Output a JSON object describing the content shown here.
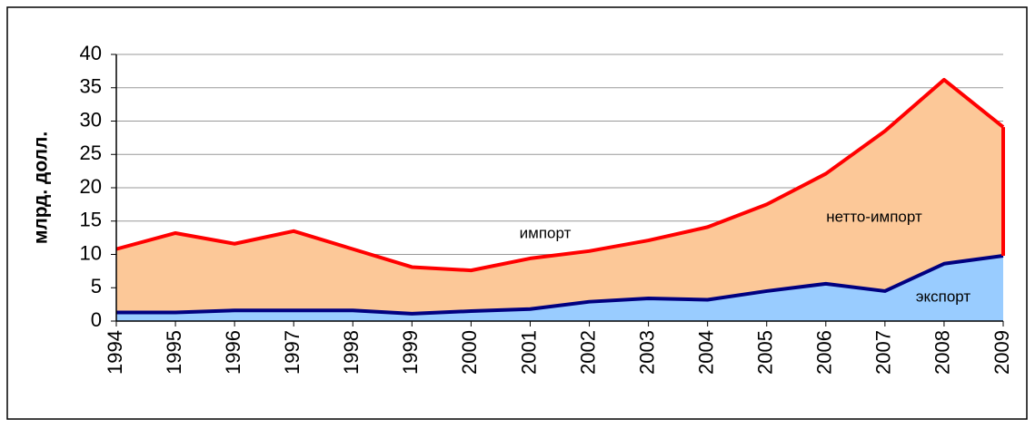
{
  "chart_data": {
    "type": "area",
    "y_label": "млрд. долл.",
    "categories": [
      "1994",
      "1995",
      "1996",
      "1997",
      "1998",
      "1999",
      "2000",
      "2001",
      "2002",
      "2003",
      "2004",
      "2005",
      "2006",
      "2007",
      "2008",
      "2009"
    ],
    "series": [
      {
        "name": "импорт",
        "color": "#ff0000",
        "fill": "#fcc898",
        "values": [
          10.8,
          13.2,
          11.6,
          13.5,
          10.8,
          8.1,
          7.6,
          9.4,
          10.5,
          12.1,
          14.1,
          17.5,
          22.1,
          28.5,
          36.2,
          29.1
        ]
      },
      {
        "name": "экспорт",
        "color": "#000080",
        "fill": "#99ccff",
        "values": [
          1.3,
          1.3,
          1.6,
          1.6,
          1.6,
          1.1,
          1.5,
          1.8,
          2.9,
          3.4,
          3.2,
          4.5,
          5.6,
          4.5,
          8.6,
          9.8
        ]
      }
    ],
    "annotations": [
      "нетто-импорт"
    ],
    "ylim": [
      0,
      40
    ],
    "yticks": [
      0,
      5,
      10,
      15,
      20,
      25,
      30,
      35,
      40
    ],
    "grid": true
  }
}
